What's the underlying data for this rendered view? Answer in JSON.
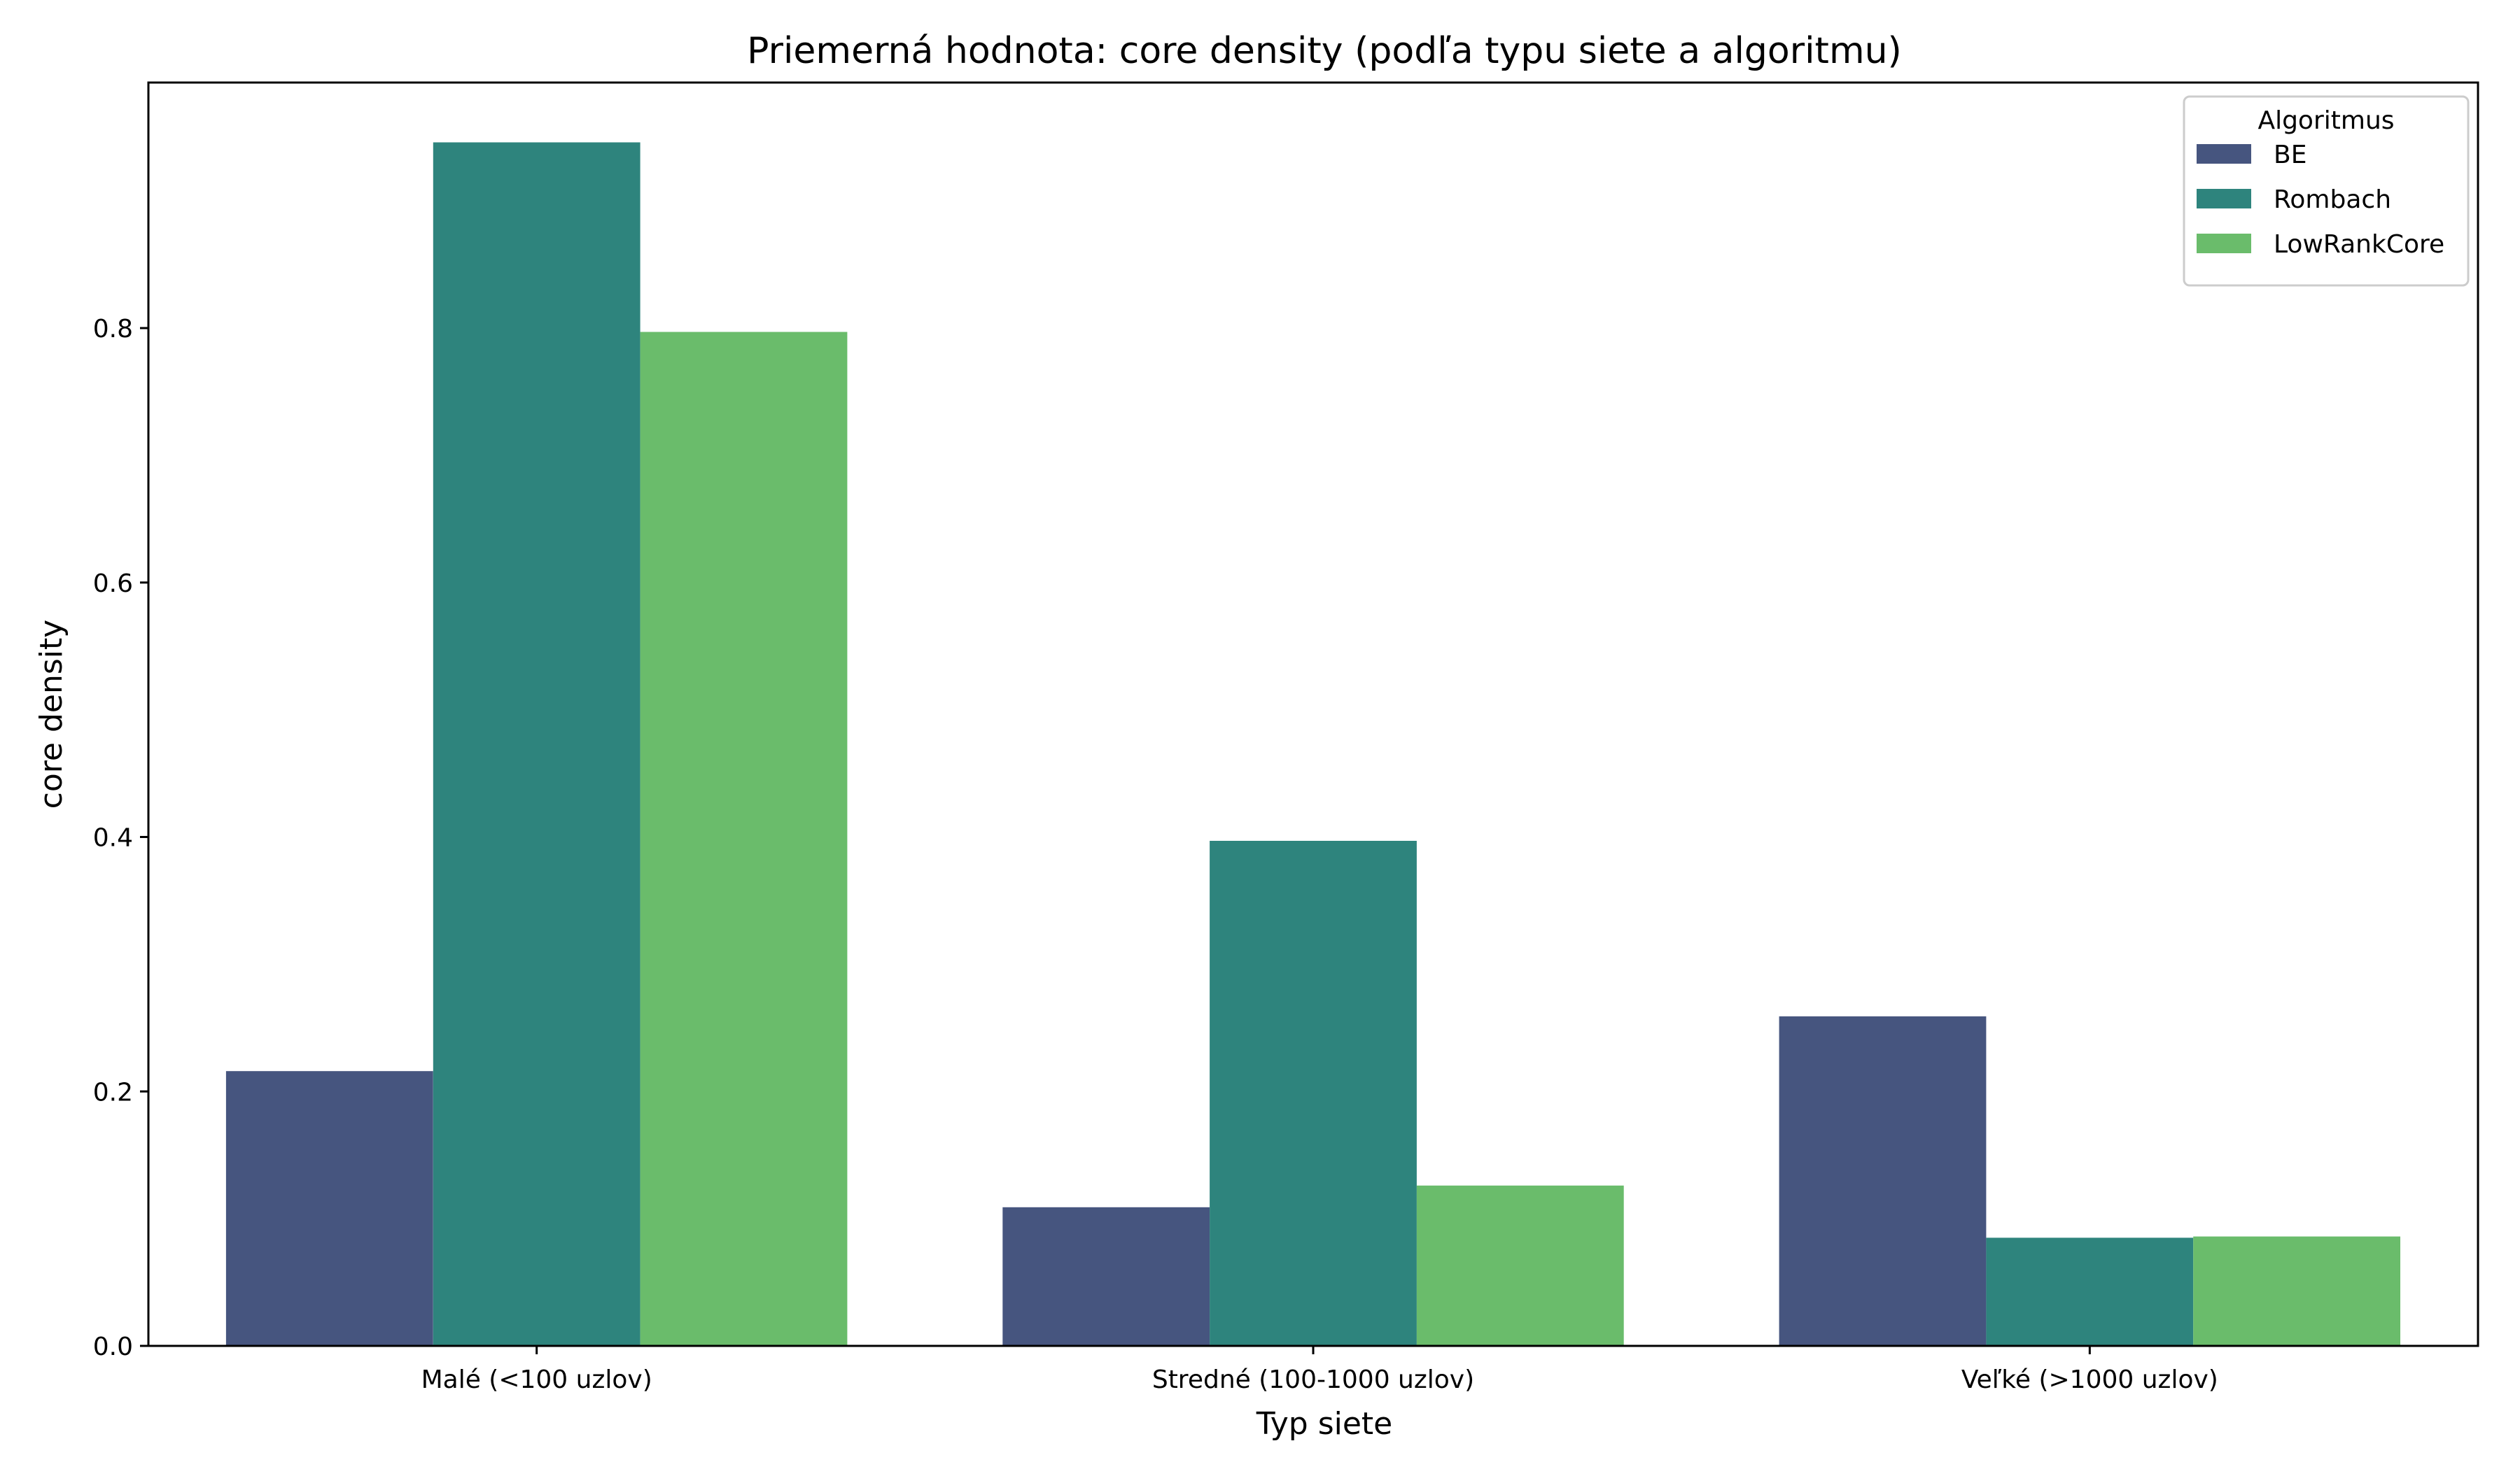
{
  "chart_data": {
    "type": "bar",
    "title": "Priemerná hodnota: core density (podľa typu siete a algoritmu)",
    "xlabel": "Typ siete",
    "ylabel": "core density",
    "categories": [
      "Malé (<100 uzlov)",
      "Stredné (100-1000 uzlov)",
      "Veľké (>1000 uzlov)"
    ],
    "series": [
      {
        "name": "BE",
        "color": "#46557f",
        "values": [
          0.216,
          0.109,
          0.259
        ]
      },
      {
        "name": "Rombach",
        "color": "#2e847d",
        "values": [
          0.946,
          0.397,
          0.085
        ]
      },
      {
        "name": "LowRankCore",
        "color": "#6abc6b",
        "values": [
          0.797,
          0.126,
          0.086
        ]
      }
    ],
    "ylim": [
      0,
      0.993
    ],
    "yticks": [
      0.0,
      0.2,
      0.4,
      0.6,
      0.8
    ],
    "ytick_labels": [
      "0.0",
      "0.2",
      "0.4",
      "0.6",
      "0.8"
    ],
    "legend": {
      "title": "Algoritmus",
      "position": "top-right"
    },
    "grid": false
  }
}
